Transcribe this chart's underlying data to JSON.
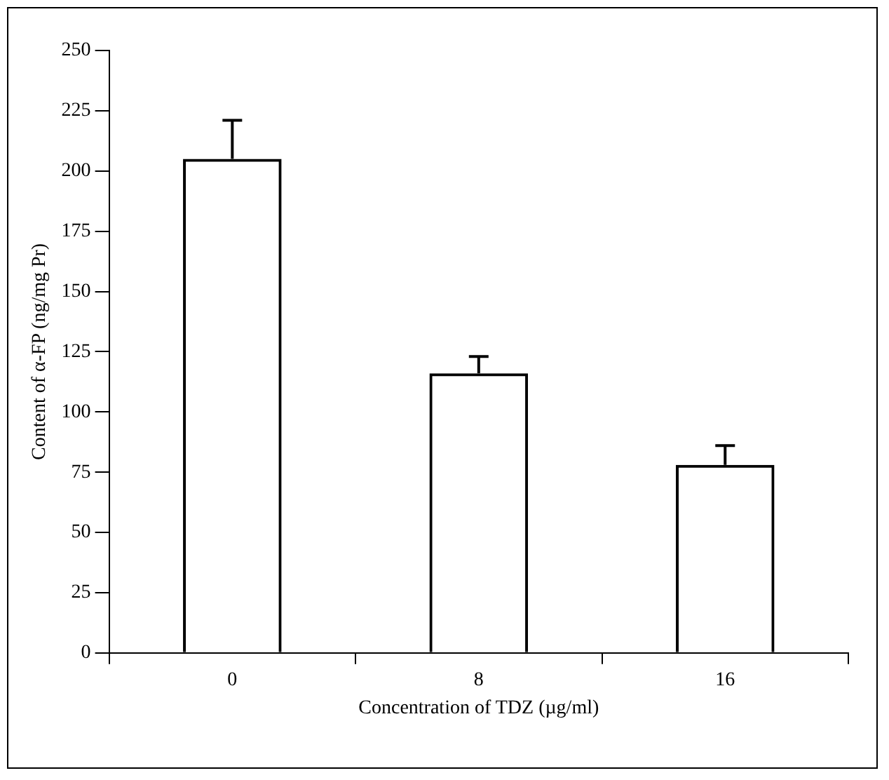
{
  "chart_data": {
    "type": "bar",
    "xlabel": "Concentration of TDZ (µg/ml)",
    "ylabel": "Content of α-FP (ng/mg Pr)",
    "categories": [
      "0",
      "8",
      "16"
    ],
    "values": [
      205,
      116,
      78
    ],
    "errors": [
      [
        205,
        221
      ],
      [
        116,
        123
      ],
      [
        78,
        86
      ]
    ],
    "color": "#000000",
    "ylim": [
      0,
      250
    ],
    "yticks": [
      0,
      25,
      50,
      75,
      100,
      125,
      150,
      175,
      200,
      225,
      250
    ],
    "grid": false,
    "legend": false
  }
}
